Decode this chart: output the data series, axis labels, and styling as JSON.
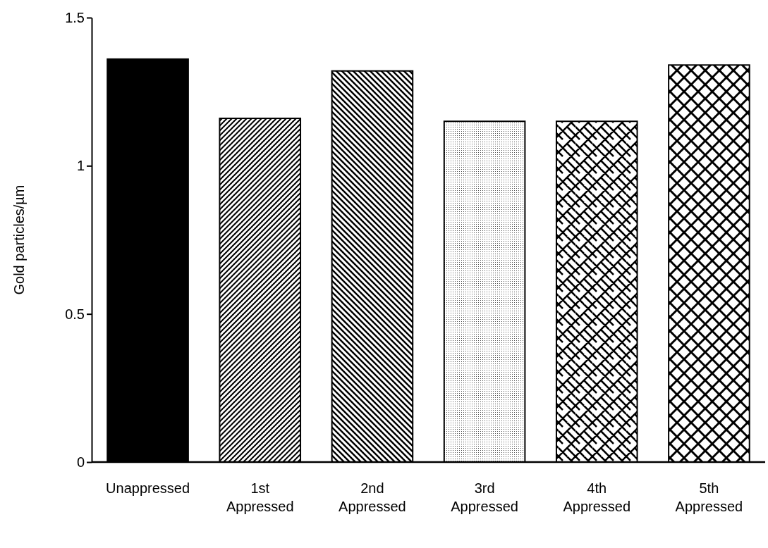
{
  "chart_data": {
    "type": "bar",
    "ylabel": "Gold particles/µm",
    "categories": [
      "Unappressed",
      "1st Appressed",
      "2nd Appressed",
      "3rd Appressed",
      "4th Appressed",
      "5th Appressed"
    ],
    "values": [
      1.36,
      1.16,
      1.32,
      1.15,
      1.15,
      1.34
    ],
    "colors": [
      "#000000",
      "#000000",
      "#000000",
      "#000000",
      "#000000",
      "#000000"
    ],
    "ylim": [
      0,
      1.5
    ],
    "yticks": [
      0,
      0.5,
      1,
      1.5
    ],
    "grid": false
  }
}
